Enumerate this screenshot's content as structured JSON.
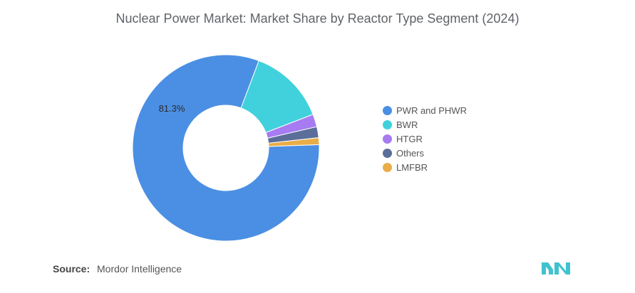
{
  "title": "Nuclear Power Market: Market Share by Reactor Type Segment (2024)",
  "chart_data": {
    "type": "pie",
    "donut": true,
    "title": "Nuclear Power Market: Market Share by Reactor Type Segment (2024)",
    "legend_position": "right",
    "unit": "%",
    "slices": [
      {
        "name": "PWR and PHWR",
        "value": 81.3,
        "label": "81.3%",
        "color": "#4a8fe3"
      },
      {
        "name": "BWR",
        "value": 13.4,
        "label": "",
        "color": "#40d1dc"
      },
      {
        "name": "HTGR",
        "value": 2.2,
        "label": "",
        "color": "#a77bf2"
      },
      {
        "name": "Others",
        "value": 1.9,
        "label": "",
        "color": "#5b6e99"
      },
      {
        "name": "LMFBR",
        "value": 1.2,
        "label": "",
        "color": "#e9ad47"
      }
    ]
  },
  "source": {
    "label": "Source:",
    "text": "Mordor Intelligence"
  },
  "logo": {
    "name": "mordor-intelligence-logo",
    "color": "#3ec3cf"
  }
}
